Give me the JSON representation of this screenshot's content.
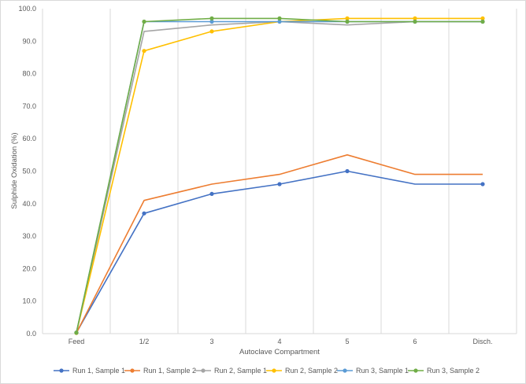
{
  "chart_data": {
    "type": "line",
    "title": "",
    "xlabel": "Autoclave Compartment",
    "ylabel": "Sulphide Oxidation (%)",
    "categories": [
      "Feed",
      "1/2",
      "3",
      "4",
      "5",
      "6",
      "Disch."
    ],
    "ylim": [
      0,
      100
    ],
    "yticks": [
      "0.0",
      "10.0",
      "20.0",
      "30.0",
      "40.0",
      "50.0",
      "60.0",
      "70.0",
      "80.0",
      "90.0",
      "100.0"
    ],
    "grid": "vertical",
    "legend": "bottom",
    "series": [
      {
        "name": "Run 1, Sample 1",
        "color": "#4472c4",
        "values": [
          0.3,
          37,
          43,
          46,
          50,
          46,
          46
        ],
        "markers": [
          true,
          true,
          true,
          true,
          true,
          false,
          true
        ]
      },
      {
        "name": "Run 1, Sample 2",
        "color": "#ed7d31",
        "values": [
          0.2,
          41,
          46,
          49,
          55,
          49,
          49
        ],
        "markers": [
          false,
          false,
          false,
          false,
          false,
          false,
          false
        ]
      },
      {
        "name": "Run 2, Sample 1",
        "color": "#a5a5a5",
        "values": [
          0.2,
          93,
          95,
          96,
          95,
          96,
          96
        ],
        "markers": [
          false,
          false,
          false,
          false,
          false,
          false,
          false
        ]
      },
      {
        "name": "Run 2, Sample 2",
        "color": "#ffc000",
        "values": [
          0.2,
          87,
          93,
          96,
          97,
          97,
          97
        ],
        "markers": [
          true,
          true,
          true,
          false,
          true,
          true,
          true
        ]
      },
      {
        "name": "Run 3, Sample 1",
        "color": "#5b9bd5",
        "values": [
          0.3,
          96,
          96,
          96,
          96,
          96,
          96
        ],
        "markers": [
          true,
          false,
          true,
          true,
          true,
          true,
          true
        ]
      },
      {
        "name": "Run 3, Sample 2",
        "color": "#70ad47",
        "values": [
          0.3,
          96,
          97,
          97,
          96,
          96,
          96
        ],
        "markers": [
          true,
          true,
          true,
          true,
          true,
          true,
          true
        ]
      }
    ]
  }
}
